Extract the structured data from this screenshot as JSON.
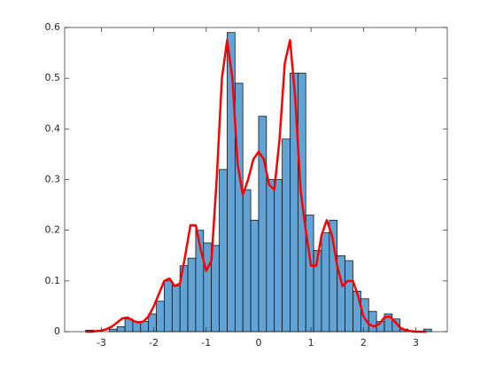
{
  "chart_data": {
    "type": "histogram",
    "bins": [
      -3.3,
      -3.15,
      -3.0,
      -2.85,
      -2.7,
      -2.55,
      -2.4,
      -2.25,
      -2.1,
      -1.95,
      -1.8,
      -1.65,
      -1.5,
      -1.35,
      -1.2,
      -1.05,
      -0.9,
      -0.75,
      -0.6,
      -0.45,
      -0.3,
      -0.15,
      0,
      0.15,
      0.3,
      0.45,
      0.6,
      0.75,
      0.9,
      1.05,
      1.2,
      1.35,
      1.5,
      1.65,
      1.8,
      1.95,
      2.1,
      2.25,
      2.4,
      2.55,
      2.7,
      2.85,
      3.0,
      3.15,
      3.3
    ],
    "counts": [
      0.003,
      0,
      0,
      0.005,
      0.01,
      0.025,
      0.02,
      0.02,
      0.035,
      0.06,
      0.1,
      0.09,
      0.13,
      0.145,
      0.2,
      0.175,
      0.17,
      0.32,
      0.59,
      0.49,
      0.28,
      0.22,
      0.425,
      0.3,
      0.3,
      0.38,
      0.51,
      0.51,
      0.23,
      0.16,
      0.195,
      0.22,
      0.15,
      0.14,
      0.08,
      0.065,
      0.04,
      0.02,
      0.035,
      0.025,
      0.005,
      0,
      0,
      0.005
    ],
    "color": "#62a3d6",
    "edgecolor": "#000000",
    "curve": {
      "color": "#ff0000",
      "x": [
        -3.3,
        -3.2,
        -3.1,
        -3.0,
        -2.9,
        -2.8,
        -2.7,
        -2.6,
        -2.5,
        -2.4,
        -2.3,
        -2.2,
        -2.1,
        -2.0,
        -1.9,
        -1.8,
        -1.7,
        -1.6,
        -1.5,
        -1.4,
        -1.3,
        -1.2,
        -1.1,
        -1.0,
        -0.9,
        -0.8,
        -0.7,
        -0.6,
        -0.5,
        -0.4,
        -0.3,
        -0.2,
        -0.1,
        0,
        0.1,
        0.2,
        0.3,
        0.4,
        0.5,
        0.6,
        0.7,
        0.8,
        0.9,
        1.0,
        1.1,
        1.2,
        1.3,
        1.4,
        1.5,
        1.6,
        1.7,
        1.8,
        1.9,
        2.0,
        2.1,
        2.2,
        2.3,
        2.4,
        2.5,
        2.6,
        2.7,
        2.8,
        2.9,
        3.0,
        3.1,
        3.2
      ],
      "values": [
        0,
        0,
        0.001,
        0.002,
        0.005,
        0.01,
        0.018,
        0.026,
        0.028,
        0.022,
        0.018,
        0.02,
        0.03,
        0.05,
        0.075,
        0.1,
        0.105,
        0.09,
        0.095,
        0.15,
        0.21,
        0.21,
        0.16,
        0.12,
        0.14,
        0.3,
        0.5,
        0.575,
        0.5,
        0.33,
        0.27,
        0.3,
        0.34,
        0.355,
        0.34,
        0.29,
        0.28,
        0.38,
        0.53,
        0.575,
        0.46,
        0.28,
        0.2,
        0.13,
        0.13,
        0.19,
        0.22,
        0.19,
        0.13,
        0.09,
        0.1,
        0.1,
        0.07,
        0.03,
        0.015,
        0.01,
        0.015,
        0.028,
        0.03,
        0.02,
        0.008,
        0.003,
        0.001,
        0,
        0,
        0
      ]
    },
    "xlim": [
      -3.7,
      3.6
    ],
    "ylim": [
      0,
      0.6
    ],
    "xticks": [
      -3,
      -2,
      -1,
      0,
      1,
      2,
      3
    ],
    "yticks": [
      0,
      0.1,
      0.2,
      0.3,
      0.4,
      0.5,
      0.6
    ]
  }
}
